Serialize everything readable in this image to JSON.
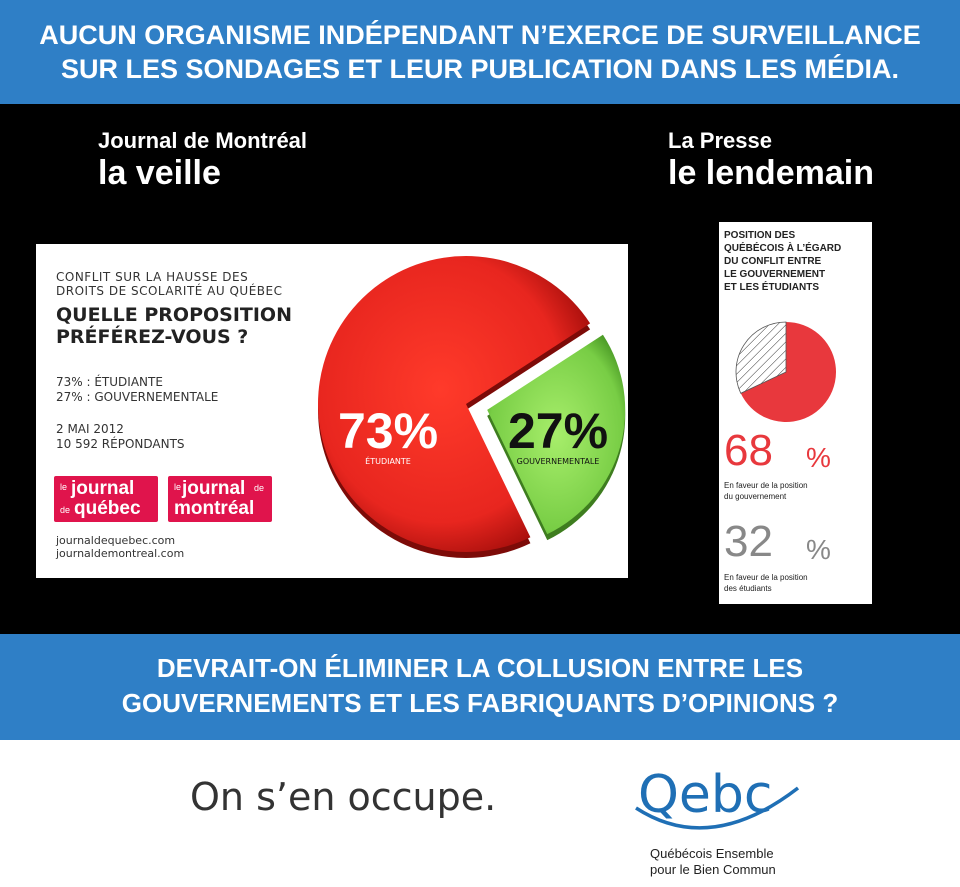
{
  "top_banner": {
    "line1": "AUCUN ORGANISME INDÉPENDANT N’EXERCE DE SURVEILLANCE",
    "line2": "SUR LES SONDAGES ET LEUR PUBLICATION DANS LES MÉDIA."
  },
  "left_header": {
    "line1": "Journal de Montréal",
    "line2": "la veille"
  },
  "right_header": {
    "line1": "La Presse",
    "line2": "le lendemain"
  },
  "jdm_card": {
    "subtitle_line1": "CONFLIT SUR LA HAUSSE DES",
    "subtitle_line2": "DROITS DE SCOLARITÉ AU QUÉBEC",
    "question_line1": "QUELLE PROPOSITION",
    "question_line2": "PRÉFÉREZ-VOUS ?",
    "result1": "73% : ÉTUDIANTE",
    "result2": "27% : GOUVERNEMENTALE",
    "date": "2 MAI 2012",
    "respondents": "10 592 RÉPONDANTS",
    "logo1_small_top": "le",
    "logo1_word1": "journal",
    "logo1_small_mid": "de",
    "logo1_word2": "québec",
    "logo2_small_top": "le",
    "logo2_word1": "journal",
    "logo2_small_mid": "de",
    "logo2_word2": "montréal",
    "url1": "journaldequebec.com",
    "url2": "journaldemontreal.com",
    "logo_color": "#e0144c"
  },
  "lp_card": {
    "title_lines": [
      "POSITION DES",
      "QUÉBÉCOIS À L’ÉGARD",
      "DU CONFLIT ENTRE",
      "LE GOUVERNEMENT",
      "ET LES ÉTUDIANTS"
    ],
    "value1": "68",
    "pct_symbol": "%",
    "caption1_line1": "En faveur de la position",
    "caption1_line2": "du gouvernement",
    "value2": "32",
    "caption2_line1": "En faveur de la position",
    "caption2_line2": "des étudiants"
  },
  "mid_banner": {
    "line1": "DEVRAIT-ON ÉLIMINER LA COLLUSION ENTRE LES",
    "line2": "GOUVERNEMENTS ET LES FABRIQUANTS D’OPINIONS ?"
  },
  "slogan": "On s’en occupe.",
  "qebc_logo": {
    "wordmark": "Qebc",
    "tagline_line1": "Québécois Ensemble",
    "tagline_line2": "pour le Bien Commun"
  },
  "chart_data": [
    {
      "type": "pie",
      "slices": [
        {
          "label": "ÉTUDIANTE",
          "value": 73,
          "display": "73%",
          "color": "#e8261f"
        },
        {
          "label": "GOUVERNEMENTALE",
          "value": 27,
          "display": "27%",
          "color": "#7fd24a"
        }
      ]
    },
    {
      "type": "pie",
      "slices": [
        {
          "label": "En faveur de la position du gouvernement",
          "value": 68,
          "color": "#e8383d"
        },
        {
          "label": "En faveur de la position des étudiants",
          "value": 32,
          "color": "#ffffff",
          "pattern": "hatched"
        }
      ]
    }
  ]
}
